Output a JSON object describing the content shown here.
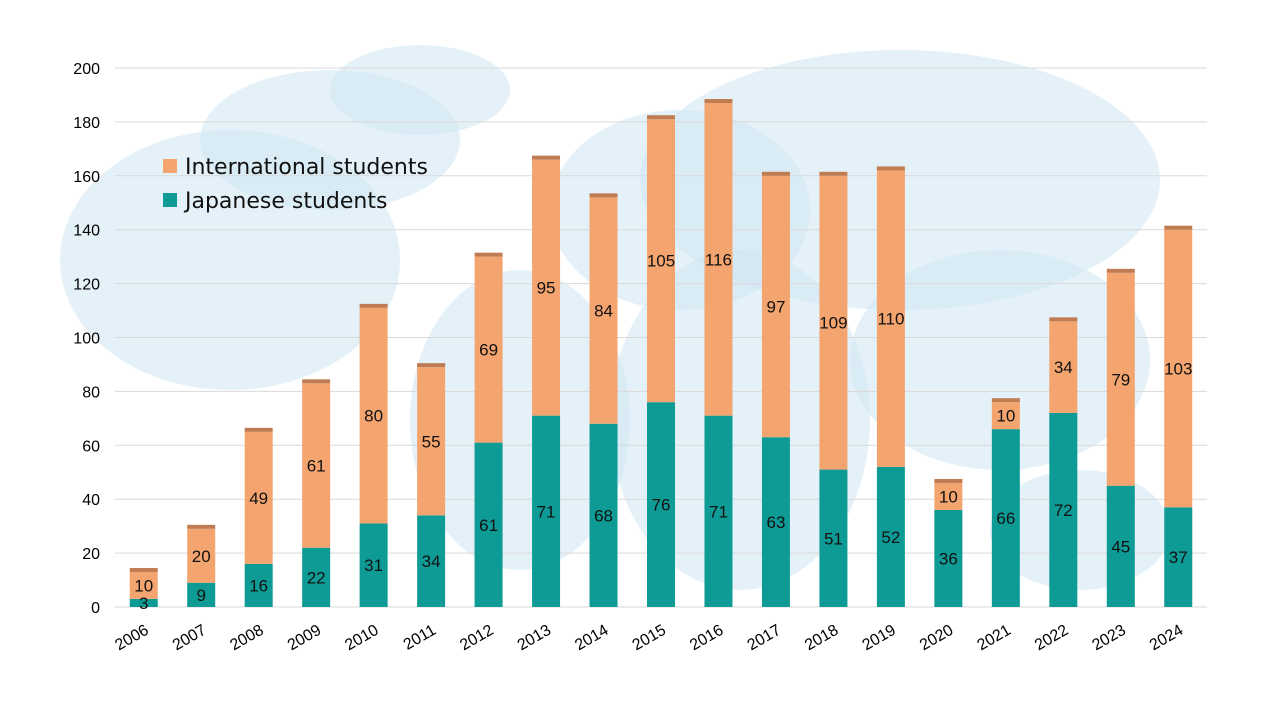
{
  "colors": {
    "international": "#F4A46E",
    "japanese": "#0E9B95",
    "cap": "#BF7C52",
    "grid": "#D9D9D9",
    "map": "#CFE5F3"
  },
  "chart_data": {
    "type": "bar",
    "stacked": true,
    "title": "",
    "xlabel": "",
    "ylabel": "",
    "ylim": [
      0,
      200
    ],
    "yticks": [
      0,
      20,
      40,
      60,
      80,
      100,
      120,
      140,
      160,
      180,
      200
    ],
    "grid": true,
    "legend_position": "top-left",
    "categories": [
      "2006",
      "2007",
      "2008",
      "2009",
      "2010",
      "2011",
      "2012",
      "2013",
      "2014",
      "2015",
      "2016",
      "2017",
      "2018",
      "2019",
      "2020",
      "2021",
      "2022",
      "2023",
      "2024"
    ],
    "series": [
      {
        "name": "Japanese students",
        "color_key": "japanese",
        "values": [
          3,
          9,
          16,
          22,
          31,
          34,
          61,
          71,
          68,
          76,
          71,
          63,
          51,
          52,
          36,
          66,
          72,
          45,
          37
        ]
      },
      {
        "name": "International students",
        "color_key": "international",
        "values": [
          10,
          20,
          49,
          61,
          80,
          55,
          69,
          95,
          84,
          105,
          116,
          97,
          109,
          110,
          10,
          10,
          34,
          79,
          103
        ]
      }
    ],
    "legend": [
      "International students",
      "Japanese students"
    ]
  }
}
